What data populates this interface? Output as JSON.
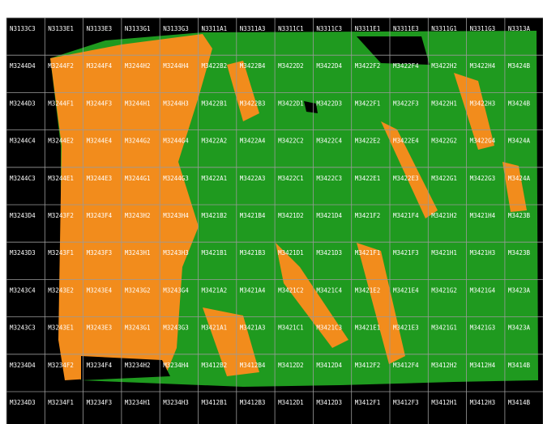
{
  "rows": [
    [
      "N3133C3",
      "N3133E1",
      "N3133E3",
      "N3133G1",
      "N3133G3",
      "N3311A1",
      "N3311A3",
      "N3311C1",
      "N3311C3",
      "N3311E1",
      "N3311E3",
      "N3311G1",
      "N3311G3",
      "N3313A"
    ],
    [
      "M3244D4",
      "M3244F2",
      "M3244F4",
      "M3244H2",
      "M3244H4",
      "M3422B2",
      "M3422B4",
      "M3422D2",
      "M3422D4",
      "M3422F2",
      "M3422F4",
      "M3422H2",
      "M3422H4",
      "M3424B"
    ],
    [
      "M3244D3",
      "M3244F1",
      "M3244F3",
      "M3244H1",
      "M3244H3",
      "M3422B1",
      "M3422B3",
      "M3422D1",
      "M3422D3",
      "M3422F1",
      "M3422F3",
      "M3422H1",
      "M3422H3",
      "M3424B"
    ],
    [
      "M3244C4",
      "M3244E2",
      "M3244E4",
      "M3244G2",
      "M3244G4",
      "M3422A2",
      "M3422A4",
      "M3422C2",
      "M3422C4",
      "M3422E2",
      "M3422E4",
      "M3422G2",
      "M3422G4",
      "M3424A"
    ],
    [
      "M3244C3",
      "M3244E1",
      "M3244E3",
      "M3244G1",
      "M3244G3",
      "M3422A1",
      "M3422A3",
      "M3422C1",
      "M3422C3",
      "M3422E1",
      "M3422E3",
      "M3422G1",
      "M3422G3",
      "M3424A"
    ],
    [
      "M3243D4",
      "M3243F2",
      "M3243F4",
      "M3243H2",
      "M3243H4",
      "M3421B2",
      "M3421B4",
      "M3421D2",
      "M3421D4",
      "M3421F2",
      "M3421F4",
      "M3421H2",
      "M3421H4",
      "M3423B"
    ],
    [
      "M3243D3",
      "M3243F1",
      "M3243F3",
      "M3243H1",
      "M3243H3",
      "M3421B1",
      "M3421B3",
      "M3421D1",
      "M3421D3",
      "M3421F1",
      "M3421F3",
      "M3421H1",
      "M3421H3",
      "M3423B"
    ],
    [
      "M3243C4",
      "M3243E2",
      "M3243E4",
      "M3243G2",
      "M3243G4",
      "M3421A2",
      "M3421A4",
      "M3421C2",
      "M3421C4",
      "M3421E2",
      "M3421E4",
      "M3421G2",
      "M3421G4",
      "M3423A"
    ],
    [
      "M3243C3",
      "M3243E1",
      "M3243E3",
      "M3243G1",
      "M3243G3",
      "M3421A1",
      "M3421A3",
      "M3421C1",
      "M3421C3",
      "M3421E1",
      "M3421E3",
      "M3421G1",
      "M3421G3",
      "M3423A"
    ],
    [
      "M3234D4",
      "M3234F2",
      "M3234F4",
      "M3234H2",
      "M3234H4",
      "M3412B2",
      "M3412B4",
      "M3412D2",
      "M3412D4",
      "M3412F2",
      "M3412F4",
      "M3412H2",
      "M3412H4",
      "M3414B"
    ],
    [
      "M3234D3",
      "M3234F1",
      "M3234F3",
      "M3234H1",
      "M3234H3",
      "M3412B1",
      "M3412B3",
      "M3412D1",
      "M3412D3",
      "M3412F1",
      "M3412F3",
      "M3412H1",
      "M3412H3",
      "M3414B"
    ]
  ]
}
